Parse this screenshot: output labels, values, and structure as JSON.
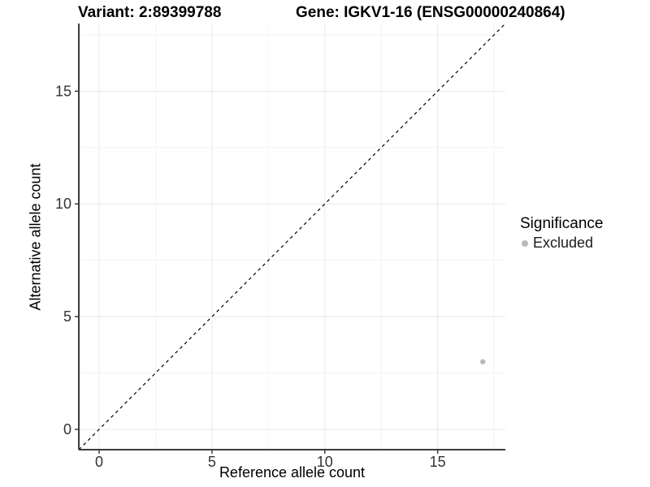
{
  "header": {
    "variant_title": "Variant: 2:89399788",
    "gene_title": "Gene: IGKV1-16 (ENSG00000240864)"
  },
  "chart_data": {
    "type": "scatter",
    "xlabel": "Reference allele count",
    "ylabel": "Alternative allele count",
    "xlim": [
      -0.9,
      18
    ],
    "ylim": [
      -0.9,
      18
    ],
    "x_ticks": [
      0,
      5,
      10,
      15
    ],
    "y_ticks": [
      0,
      5,
      10,
      15
    ],
    "x_minor_ticks": [
      2.5,
      7.5,
      12.5,
      17.5
    ],
    "y_minor_ticks": [
      2.5,
      7.5,
      12.5,
      17.5
    ],
    "grid": "major and minor light-grey gridlines on white panel",
    "legend": {
      "title": "Significance",
      "position": "right"
    },
    "series": [
      {
        "name": "Excluded",
        "color": "#b9b9b9",
        "points": [
          {
            "x": 17,
            "y": 3
          }
        ]
      }
    ],
    "reference_line": {
      "style": "dashed",
      "slope": 1,
      "intercept": 0,
      "color": "#000000",
      "description": "y = x identity line across panel"
    }
  },
  "colors": {
    "background": "#ffffff",
    "axis_line": "#3c3c3c",
    "grid_major": "#e9e9e9",
    "grid_minor": "#f4f4f4",
    "tick_text": "#333333",
    "title_text": "#000000"
  }
}
